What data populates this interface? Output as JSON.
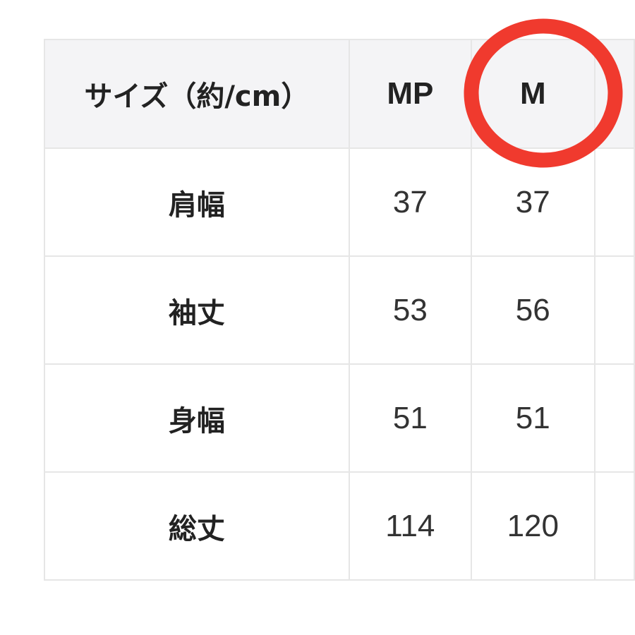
{
  "table": {
    "header": [
      "サイズ（約/cm）",
      "MP",
      "M",
      ""
    ],
    "rows": [
      {
        "label": "肩幅",
        "values": [
          "37",
          "37",
          ""
        ]
      },
      {
        "label": "袖丈",
        "values": [
          "53",
          "56",
          ""
        ]
      },
      {
        "label": "身幅",
        "values": [
          "51",
          "51",
          ""
        ]
      },
      {
        "label": "総丈",
        "values": [
          "114",
          "120",
          ""
        ]
      }
    ]
  },
  "annotation": {
    "shape": "circle",
    "target": "M",
    "color": "#f03a2e"
  }
}
